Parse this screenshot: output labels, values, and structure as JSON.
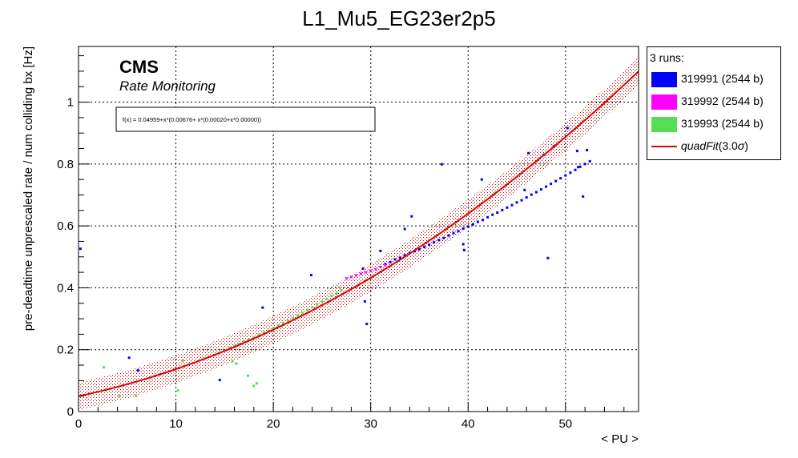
{
  "title": "L1_Mu5_EG23er2p5",
  "cms_label": "CMS",
  "cms_sublabel": "Rate Monitoring",
  "fit_formula": "f(x) = 0.04959+x*(0.00676+ x*(0.00020+x*0.00000))",
  "legend": {
    "header": "3 runs:",
    "entries": [
      {
        "label": "319991 (2544 b)",
        "color": "#0000ff"
      },
      {
        "label": "319992 (2544 b)",
        "color": "#ff00ff"
      },
      {
        "label": "319993 (2544 b)",
        "color": "#55dd55"
      }
    ],
    "fit_label": "quadFit",
    "fit_suffix": "(3.0",
    "fit_sigma": "σ",
    "fit_close": ")",
    "fit_color": "#e00000"
  },
  "chart_data": {
    "type": "scatter",
    "title": "L1_Mu5_EG23er2p5",
    "xlabel": "< PU >",
    "ylabel": "pre-deadtime unprescaled rate / num colliding bx [Hz]",
    "xlim": [
      0,
      57.5
    ],
    "ylim": [
      0,
      1.18
    ],
    "xticks": [
      0,
      10,
      20,
      30,
      40,
      50
    ],
    "yticks": [
      0,
      0.2,
      0.4,
      0.6,
      0.8,
      1
    ],
    "grid": true,
    "fit": {
      "name": "quadFit",
      "coefficients": [
        0.04959,
        0.00676,
        0.0002,
        0.0
      ],
      "band_sigma": 3.0,
      "band_halfwidth": 0.045,
      "color": "#e00000"
    },
    "series": [
      {
        "name": "319991 (2544 b)",
        "color": "#0000ff",
        "x": [
          31.5,
          32,
          32.5,
          33,
          33.5,
          34,
          34.5,
          35,
          35.5,
          36,
          36.5,
          37,
          37.5,
          38,
          38.5,
          39,
          39.5,
          40,
          40.5,
          41,
          41.5,
          42,
          42.5,
          43,
          43.5,
          44,
          44.5,
          45,
          45.5,
          46,
          46.5,
          47,
          47.5,
          48,
          48.5,
          49,
          49.5,
          50,
          50.5,
          51,
          51.5,
          52,
          52.5,
          0.2,
          5.2,
          6.1,
          14.5,
          18.9,
          23.9,
          29.2,
          29.4,
          29.6,
          31,
          33.5,
          34.2,
          37.3,
          39.5,
          39.6,
          41.4,
          45.8,
          46.2,
          47.8,
          48.2,
          48.8,
          50.2,
          51.2,
          51.3,
          51.8,
          52.2
        ],
        "y": [
          0.477,
          0.483,
          0.492,
          0.497,
          0.505,
          0.513,
          0.518,
          0.524,
          0.532,
          0.539,
          0.547,
          0.554,
          0.561,
          0.569,
          0.577,
          0.583,
          0.591,
          0.598,
          0.605,
          0.613,
          0.619,
          0.628,
          0.636,
          0.643,
          0.651,
          0.659,
          0.667,
          0.676,
          0.683,
          0.692,
          0.701,
          0.709,
          0.718,
          0.727,
          0.736,
          0.745,
          0.754,
          0.763,
          0.772,
          0.781,
          0.791,
          0.8,
          0.809,
          0.526,
          0.174,
          0.133,
          0.102,
          0.336,
          0.441,
          0.462,
          0.356,
          0.283,
          0.519,
          0.59,
          0.631,
          0.799,
          0.541,
          0.522,
          0.75,
          0.716,
          0.835,
          0.83,
          0.496,
          0.857,
          0.916,
          0.842,
          0.79,
          0.695,
          0.845
        ]
      },
      {
        "name": "319992 (2544 b)",
        "color": "#ff00ff",
        "x": [
          27.5,
          28,
          28.5,
          29,
          29.5,
          30,
          30.5,
          31,
          31.5
        ],
        "y": [
          0.43,
          0.435,
          0.44,
          0.445,
          0.45,
          0.455,
          0.46,
          0.467,
          0.473
        ]
      },
      {
        "name": "319993 (2544 b)",
        "color": "#55dd55",
        "x": [
          15.5,
          16,
          16.5,
          17,
          17.5,
          18,
          18.5,
          19,
          19.5,
          20,
          20.5,
          21,
          21.5,
          22,
          22.5,
          23,
          23.5,
          24,
          24.5,
          25,
          25.5,
          26,
          26.5,
          27,
          2.6,
          2.8,
          4.2,
          5.9,
          10.2,
          10.7,
          15.8,
          16.2,
          17.4,
          18,
          18.3
        ],
        "y": [
          0.206,
          0.212,
          0.218,
          0.226,
          0.232,
          0.24,
          0.247,
          0.254,
          0.262,
          0.27,
          0.278,
          0.286,
          0.294,
          0.302,
          0.311,
          0.319,
          0.328,
          0.337,
          0.346,
          0.355,
          0.364,
          0.373,
          0.382,
          0.392,
          0.143,
          0.07,
          0.05,
          0.051,
          0.068,
          0.164,
          0.163,
          0.155,
          0.116,
          0.083,
          0.091
        ]
      }
    ]
  }
}
